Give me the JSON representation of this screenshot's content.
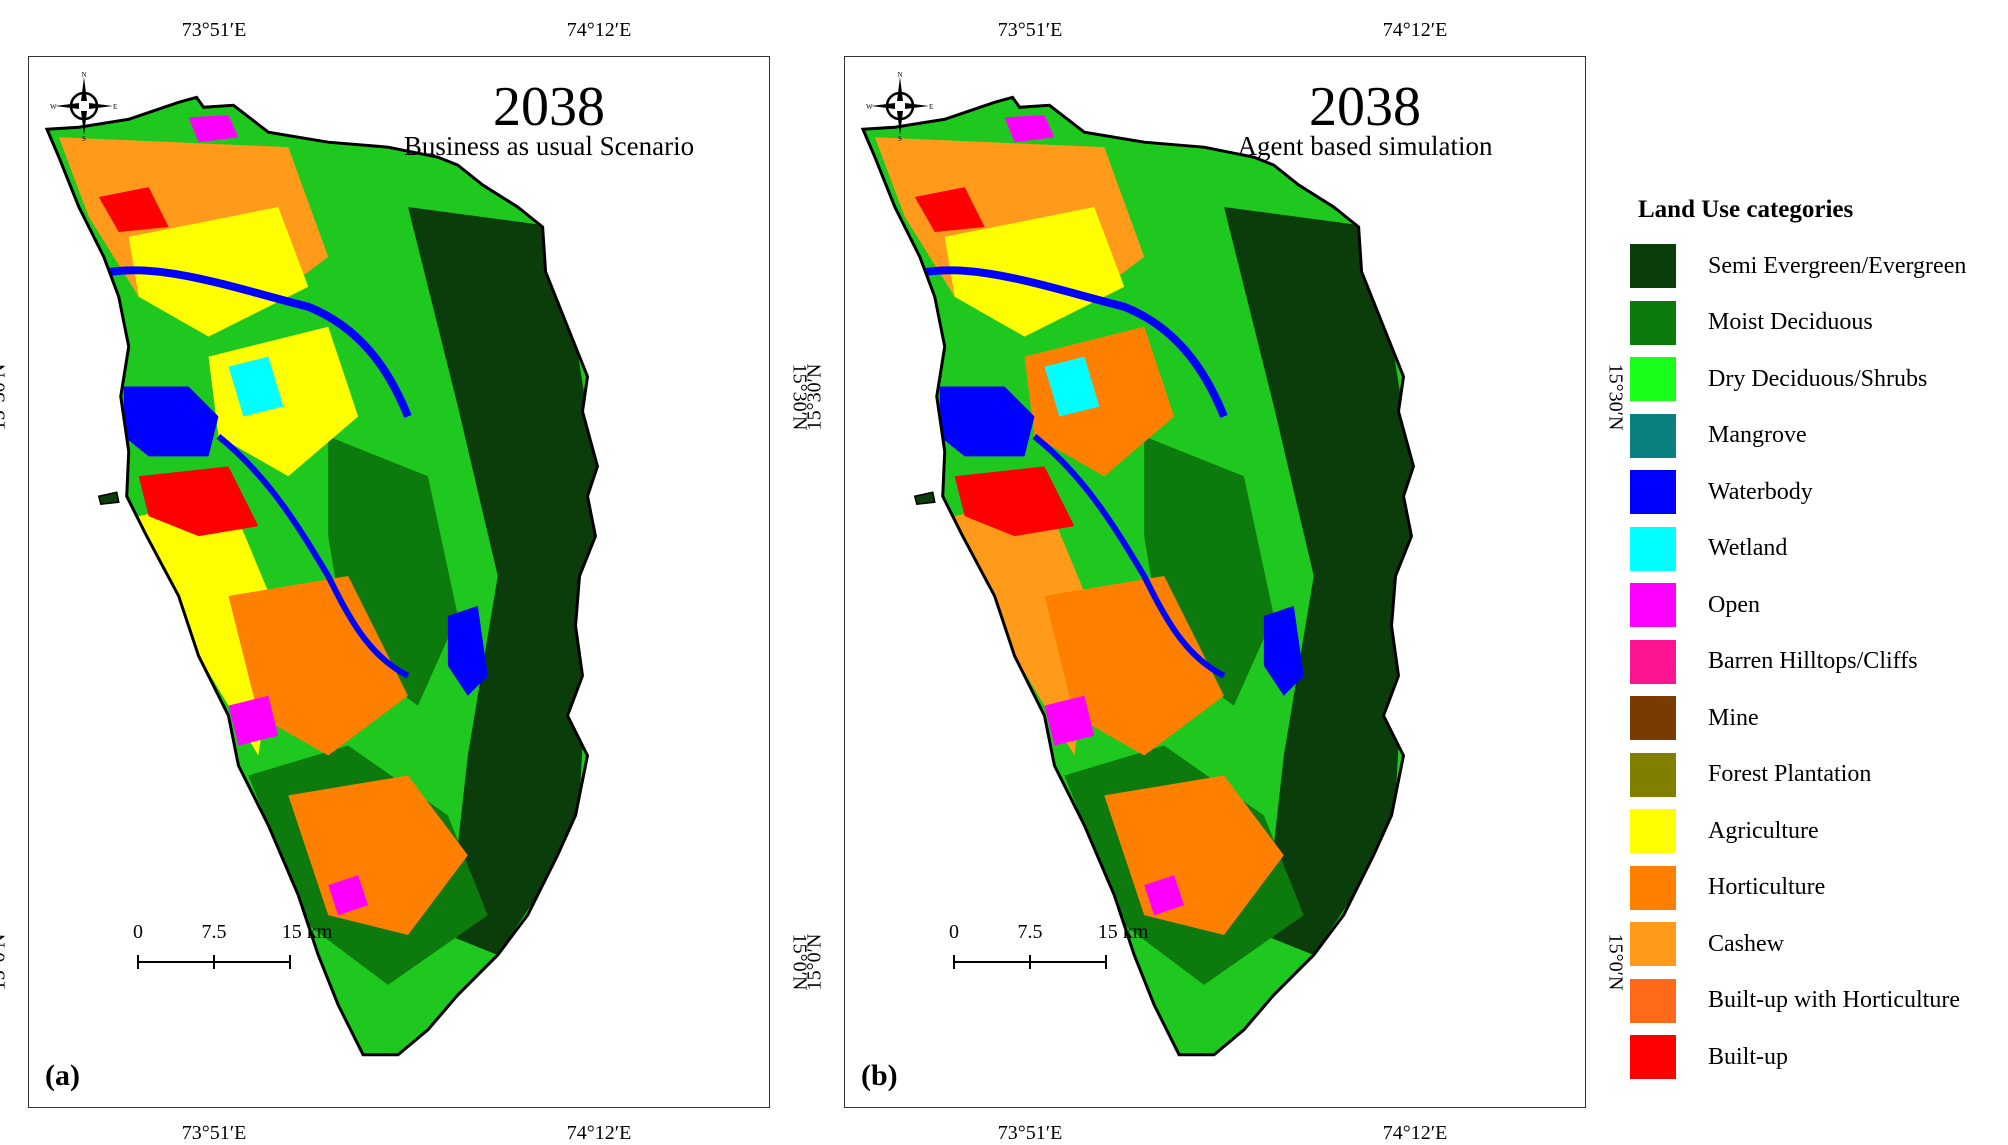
{
  "coordinates": {
    "lon_left": "73°51′E",
    "lon_right": "74°12′E",
    "lat_upper": "15°30′N",
    "lat_lower": "15°0′N"
  },
  "compass": {
    "n": "N",
    "s": "S",
    "e": "E",
    "w": "W"
  },
  "scale": {
    "t0": "0",
    "t1": "7.5",
    "t2": "15 km"
  },
  "panels": [
    {
      "year": "2038",
      "subtitle": "Business as usual Scenario",
      "label": "(a)"
    },
    {
      "year": "2038",
      "subtitle": "Agent based simulation",
      "label": "(b)"
    }
  ],
  "legend": {
    "title": "Land Use categories",
    "items": [
      {
        "label": "Semi Evergreen/Evergreen",
        "color": "#0b3d0b"
      },
      {
        "label": "Moist Deciduous",
        "color": "#0c7a0c"
      },
      {
        "label": "Dry Deciduous/Shrubs",
        "color": "#1aff1a"
      },
      {
        "label": "Mangrove",
        "color": "#0a8080"
      },
      {
        "label": "Waterbody",
        "color": "#0000ff"
      },
      {
        "label": "Wetland",
        "color": "#00ffff"
      },
      {
        "label": "Open",
        "color": "#ff00ff"
      },
      {
        "label": "Barren Hilltops/Cliffs",
        "color": "#ff1493"
      },
      {
        "label": "Mine",
        "color": "#7a3b00"
      },
      {
        "label": "Forest Plantation",
        "color": "#7f7f00"
      },
      {
        "label": "Agriculture",
        "color": "#ffff00"
      },
      {
        "label": "Horticulture",
        "color": "#ff8000"
      },
      {
        "label": "Cashew",
        "color": "#ff9a1a"
      },
      {
        "label": "Built-up with Horticulture",
        "color": "#ff6a1a"
      },
      {
        "label": "Built-up",
        "color": "#ff0000"
      }
    ]
  }
}
